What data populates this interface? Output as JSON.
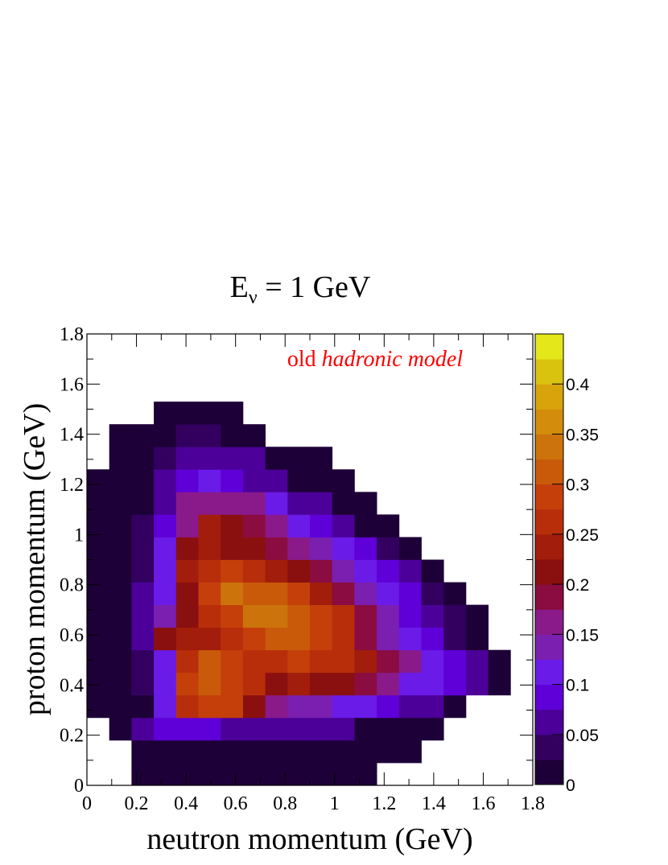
{
  "chart_data": {
    "type": "heatmap",
    "title_main": "E",
    "title_sub": "ν",
    "title_rest": " = 1 GeV",
    "annotation_plain": "old ",
    "annotation_italic": "hadronic model",
    "annotation_color": "#ff0000",
    "xlabel": "neutron momentum (GeV)",
    "ylabel": "proton momentum (GeV)",
    "xlim": [
      0,
      1.8
    ],
    "ylim": [
      0,
      1.8
    ],
    "zlim": [
      0,
      0.45
    ],
    "x_tick_labels": [
      "0",
      "0.2",
      "0.4",
      "0.6",
      "0.8",
      "1",
      "1.2",
      "1.4",
      "1.6",
      "1.8"
    ],
    "y_tick_labels": [
      "0",
      "0.2",
      "0.4",
      "0.6",
      "0.8",
      "1",
      "1.2",
      "1.4",
      "1.6",
      "1.8"
    ],
    "z_tick_labels": [
      "0",
      "0.05",
      "0.1",
      "0.15",
      "0.2",
      "0.25",
      "0.3",
      "0.35",
      "0.4"
    ],
    "bins_x": 20,
    "bins_y": 20,
    "values": [
      [
        0,
        0,
        0.01,
        0.01,
        0.01,
        0.01,
        0.01,
        0.01,
        0.01,
        0.01,
        0.01,
        0.01,
        0.01,
        0,
        0,
        0,
        0,
        0,
        0,
        0
      ],
      [
        0,
        0,
        0.01,
        0.01,
        0.01,
        0.01,
        0.01,
        0.01,
        0.01,
        0.01,
        0.01,
        0.01,
        0.01,
        0.01,
        0.01,
        0,
        0,
        0,
        0,
        0
      ],
      [
        0,
        0.01,
        0.06,
        0.09,
        0.09,
        0.09,
        0.07,
        0.07,
        0.06,
        0.05,
        0.05,
        0.05,
        0.01,
        0.01,
        0.01,
        0.01,
        0,
        0,
        0,
        0
      ],
      [
        0.01,
        0.01,
        0.02,
        0.1,
        0.26,
        0.28,
        0.29,
        0.21,
        0.16,
        0.14,
        0.13,
        0.11,
        0.11,
        0.09,
        0.07,
        0.06,
        0.01,
        0,
        0,
        0
      ],
      [
        0.01,
        0.02,
        0.03,
        0.1,
        0.28,
        0.3,
        0.29,
        0.26,
        0.22,
        0.23,
        0.22,
        0.22,
        0.18,
        0.16,
        0.12,
        0.1,
        0.08,
        0.05,
        0.01,
        0
      ],
      [
        0.01,
        0.02,
        0.03,
        0.1,
        0.27,
        0.31,
        0.28,
        0.25,
        0.27,
        0.28,
        0.27,
        0.27,
        0.24,
        0.18,
        0.15,
        0.1,
        0.09,
        0.05,
        0.01,
        0
      ],
      [
        0.01,
        0.02,
        0.06,
        0.2,
        0.24,
        0.24,
        0.26,
        0.28,
        0.3,
        0.3,
        0.28,
        0.26,
        0.19,
        0.14,
        0.1,
        0.08,
        0.04,
        0.01,
        0,
        0
      ],
      [
        0.01,
        0.02,
        0.05,
        0.14,
        0.2,
        0.25,
        0.29,
        0.33,
        0.33,
        0.3,
        0.28,
        0.25,
        0.18,
        0.13,
        0.09,
        0.06,
        0.03,
        0.01,
        0,
        0
      ],
      [
        0.01,
        0.02,
        0.05,
        0.11,
        0.2,
        0.28,
        0.33,
        0.32,
        0.3,
        0.28,
        0.24,
        0.19,
        0.13,
        0.11,
        0.08,
        0.03,
        0.01,
        0,
        0,
        0
      ],
      [
        0.01,
        0.02,
        0.04,
        0.1,
        0.24,
        0.27,
        0.28,
        0.26,
        0.24,
        0.21,
        0.19,
        0.13,
        0.11,
        0.09,
        0.05,
        0.01,
        0,
        0,
        0,
        0
      ],
      [
        0.01,
        0.02,
        0.04,
        0.1,
        0.2,
        0.23,
        0.22,
        0.2,
        0.19,
        0.17,
        0.13,
        0.1,
        0.08,
        0.03,
        0.01,
        0,
        0,
        0,
        0,
        0
      ],
      [
        0.01,
        0.02,
        0.04,
        0.09,
        0.17,
        0.23,
        0.2,
        0.19,
        0.15,
        0.12,
        0.09,
        0.06,
        0.02,
        0.01,
        0,
        0,
        0,
        0,
        0,
        0
      ],
      [
        0.01,
        0.01,
        0.02,
        0.07,
        0.15,
        0.17,
        0.16,
        0.15,
        0.1,
        0.07,
        0.05,
        0.02,
        0.01,
        0,
        0,
        0,
        0,
        0,
        0,
        0
      ],
      [
        0.01,
        0.01,
        0.01,
        0.06,
        0.08,
        0.1,
        0.09,
        0.07,
        0.05,
        0.02,
        0.01,
        0.01,
        0,
        0,
        0,
        0,
        0,
        0,
        0,
        0
      ],
      [
        0,
        0.01,
        0.01,
        0.03,
        0.07,
        0.07,
        0.06,
        0.05,
        0.02,
        0.01,
        0.01,
        0,
        0,
        0,
        0,
        0,
        0,
        0,
        0,
        0
      ],
      [
        0,
        0.01,
        0.01,
        0.01,
        0.04,
        0.04,
        0.02,
        0.01,
        0,
        0,
        0,
        0,
        0,
        0,
        0,
        0,
        0,
        0,
        0,
        0
      ],
      [
        0,
        0,
        0,
        0.01,
        0.01,
        0.01,
        0.01,
        0,
        0,
        0,
        0,
        0,
        0,
        0,
        0,
        0,
        0,
        0,
        0,
        0
      ],
      [
        0,
        0,
        0,
        0,
        0,
        0,
        0,
        0,
        0,
        0,
        0,
        0,
        0,
        0,
        0,
        0,
        0,
        0,
        0,
        0
      ],
      [
        0,
        0,
        0,
        0,
        0,
        0,
        0,
        0,
        0,
        0,
        0,
        0,
        0,
        0,
        0,
        0,
        0,
        0,
        0,
        0
      ],
      [
        0,
        0,
        0,
        0,
        0,
        0,
        0,
        0,
        0,
        0,
        0,
        0,
        0,
        0,
        0,
        0,
        0,
        0,
        0,
        0
      ]
    ],
    "colormap": [
      "#1e0038",
      "#330060",
      "#4d0099",
      "#5f00d8",
      "#6a1be8",
      "#7a1fb0",
      "#8a1a8a",
      "#8a0c40",
      "#8a0f0f",
      "#a21d0b",
      "#b82e0b",
      "#c43f0a",
      "#c95a0a",
      "#cc740b",
      "#d38c0b",
      "#d7a40c",
      "#d9c30f",
      "#e4e71a"
    ],
    "grid": false
  }
}
